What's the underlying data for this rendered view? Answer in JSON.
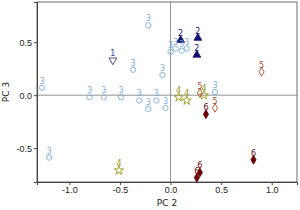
{
  "chart_data": {
    "type": "scatter",
    "x_label": "PC 2",
    "y_label": "PC 3",
    "xlim": [
      -1.32,
      1.25
    ],
    "ylim": [
      -0.82,
      0.88
    ],
    "xticks": [
      {
        "value": -1,
        "label": "-1.0"
      },
      {
        "value": -0.5,
        "label": "-0.5"
      },
      {
        "value": 0,
        "label": "0.0"
      },
      {
        "value": 0.5,
        "label": "0.5"
      },
      {
        "value": 1,
        "label": "1.0"
      }
    ],
    "yticks": [
      {
        "value": -0.5,
        "label": "-0.5"
      },
      {
        "value": 0,
        "label": "0.0"
      },
      {
        "value": 0.5,
        "label": "0.5"
      }
    ],
    "series": [
      {
        "name": "1",
        "color": "#3a3a9a",
        "marker": "triangle-down-open",
        "x": [
          -0.57
        ],
        "values": [
          0.33
        ]
      },
      {
        "name": "2",
        "color": "#141470",
        "marker": "triangle-filled",
        "x": [
          0.1,
          0.27,
          0.26
        ],
        "values": [
          0.52,
          0.54,
          0.38
        ]
      },
      {
        "name": "3",
        "color": "#7aaede",
        "marker": "circle-open",
        "x": [
          -0.22,
          -0.37,
          0.05,
          0.11,
          0.16,
          0.0,
          -0.8,
          -0.66,
          -0.49,
          -0.31,
          -0.22,
          -0.08,
          -0.05,
          -1.27,
          -1.2,
          -0.14,
          0.44
        ],
        "values": [
          0.66,
          0.24,
          0.44,
          0.42,
          0.44,
          0.41,
          -0.02,
          -0.02,
          -0.02,
          -0.05,
          -0.13,
          0.19,
          -0.12,
          0.07,
          -0.59,
          -0.05,
          0.03
        ]
      },
      {
        "name": "4",
        "color": "#9a9a1a",
        "marker": "star-open",
        "x": [
          -0.51,
          0.08,
          0.16,
          0.33
        ],
        "values": [
          -0.71,
          -0.02,
          -0.05,
          0.0
        ]
      },
      {
        "name": "5",
        "color": "#b04a26",
        "marker": "diamond-open",
        "x": [
          0.9,
          0.44,
          0.29
        ],
        "values": [
          0.22,
          -0.12,
          0.02
        ]
      },
      {
        "name": "6",
        "color": "#6a0000",
        "marker": "diamond-filled",
        "x": [
          0.82,
          0.29,
          0.26,
          0.35
        ],
        "values": [
          -0.61,
          -0.73,
          -0.78,
          -0.18
        ]
      }
    ]
  }
}
